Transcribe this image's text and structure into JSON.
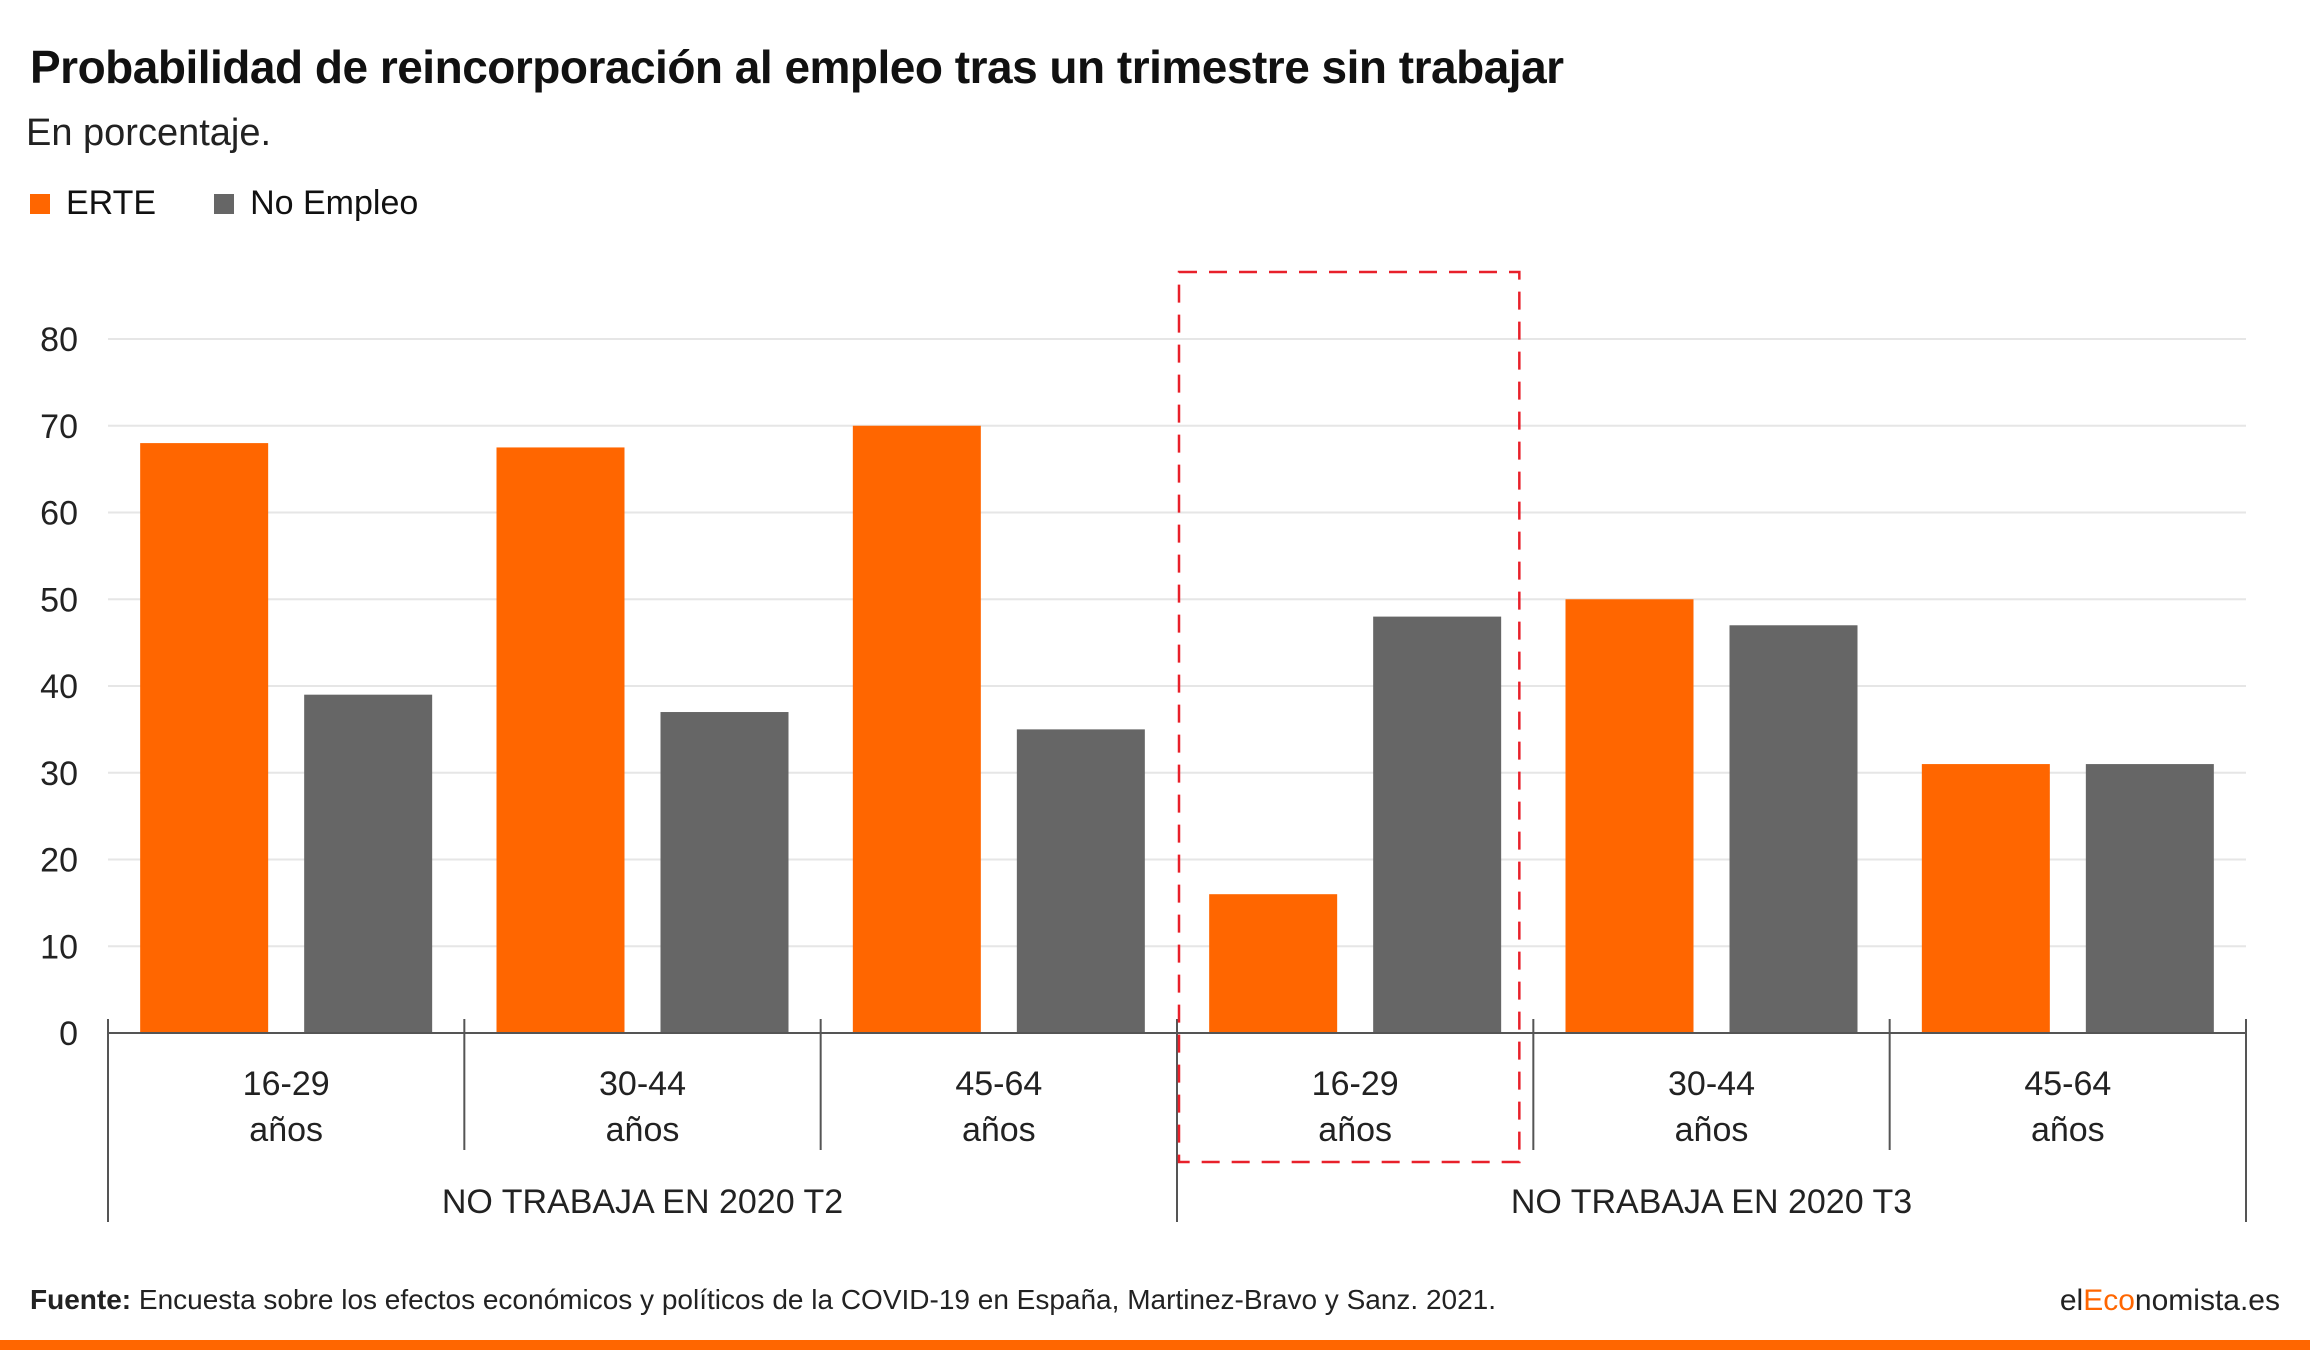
{
  "title": "Probabilidad de reincorporación al empleo tras un trimestre sin trabajar",
  "subtitle": "En porcentaje.",
  "colors": {
    "erte": "#ff6600",
    "no_empleo": "#666666",
    "highlight": "#e8202a",
    "brand_accent": "#ff6600"
  },
  "chart_data": {
    "type": "bar",
    "ylim": [
      0,
      80
    ],
    "yticks": [
      "0",
      "10",
      "20",
      "30",
      "40",
      "50",
      "60",
      "70",
      "80"
    ],
    "grid": true,
    "legend_position": "top-left",
    "categories": [
      [
        "16-29",
        "años"
      ],
      [
        "30-44",
        "años"
      ],
      [
        "45-64",
        "años"
      ],
      [
        "16-29",
        "años"
      ],
      [
        "30-44",
        "años"
      ],
      [
        "45-64",
        "años"
      ]
    ],
    "groups": [
      {
        "label": "NO TRABAJA EN 2020 T2",
        "span": 3
      },
      {
        "label": "NO TRABAJA EN 2020 T3",
        "span": 3
      }
    ],
    "series": [
      {
        "name": "ERTE",
        "values": [
          68,
          67.5,
          70,
          16,
          50,
          31
        ]
      },
      {
        "name": "No Empleo",
        "values": [
          39,
          37,
          35,
          48,
          47,
          31
        ]
      }
    ],
    "highlighted_category_index": 3
  },
  "source": {
    "label": "Fuente:",
    "text": "Encuesta sobre los efectos económicos y políticos de la COVID-19 en España, Martinez-Bravo y Sanz. 2021."
  },
  "brand": {
    "prefix": "el",
    "accent": "Eco",
    "suffix": "nomista.es"
  }
}
